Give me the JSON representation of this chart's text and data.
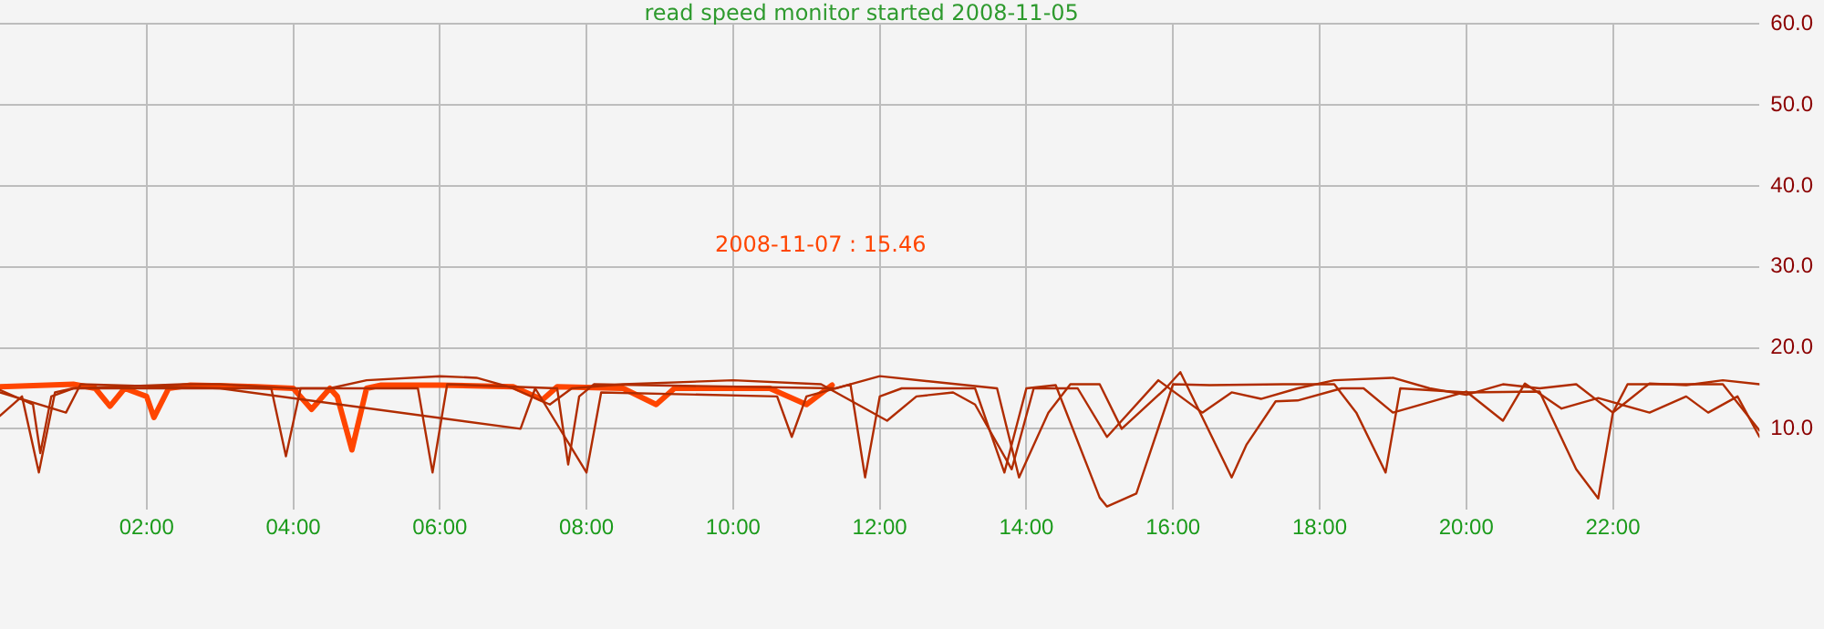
{
  "chart_data": {
    "type": "line",
    "title": "read speed monitor started 2008-11-05",
    "annotations": [
      "2008-11-07 : 15.46"
    ],
    "xlim": [
      0,
      24
    ],
    "xticks": [
      {
        "value": 2,
        "label": "02:00"
      },
      {
        "value": 4,
        "label": "04:00"
      },
      {
        "value": 6,
        "label": "06:00"
      },
      {
        "value": 8,
        "label": "08:00"
      },
      {
        "value": 10,
        "label": "10:00"
      },
      {
        "value": 12,
        "label": "12:00"
      },
      {
        "value": 14,
        "label": "14:00"
      },
      {
        "value": 16,
        "label": "16:00"
      },
      {
        "value": 18,
        "label": "18:00"
      },
      {
        "value": 20,
        "label": "20:00"
      },
      {
        "value": 22,
        "label": "22:00"
      }
    ],
    "ylim": [
      0,
      60
    ],
    "yticks": [
      {
        "value": 10,
        "label": "10.0"
      },
      {
        "value": 20,
        "label": "20.0"
      },
      {
        "value": 30,
        "label": "30.0"
      },
      {
        "value": 40,
        "label": "40.0"
      },
      {
        "value": 50,
        "label": "50.0"
      },
      {
        "value": 60,
        "label": "60.0"
      }
    ],
    "grid": true,
    "legend": false,
    "marker": "none",
    "line_style": "solid",
    "series": [
      {
        "color": "#b02c00",
        "x": [
          0,
          0.3,
          0.53,
          0.75,
          1,
          3.7,
          3.9,
          4.1,
          5.7,
          5.9,
          6.1,
          7.6,
          7.75,
          7.9,
          8.1,
          11.4,
          11.6,
          11.8,
          12,
          12.3,
          13.3,
          13.7,
          14,
          14.4,
          15,
          15.1,
          15.5,
          16,
          16.5,
          17.5,
          18.2,
          18.5,
          18.9,
          19.1,
          20,
          21,
          21.5,
          21.8,
          22,
          22.2,
          23.5,
          24
        ],
        "values": [
          11.6,
          14,
          4.6,
          14.5,
          15,
          15,
          6.6,
          15,
          15,
          4.6,
          15.5,
          15,
          5.6,
          14,
          15.5,
          15,
          15.5,
          4,
          14,
          15,
          15,
          4.6,
          15,
          15.4,
          1.5,
          0.4,
          2,
          15.5,
          15.4,
          15.5,
          15.5,
          12,
          4.6,
          15,
          14.5,
          14.6,
          5,
          1.4,
          12,
          15.5,
          15.5,
          9.8
        ]
      },
      {
        "color": "#b02c00",
        "x": [
          0,
          0.9,
          1.1,
          3,
          7.1,
          7.3,
          8,
          8.2,
          10.6,
          10.8,
          11,
          12,
          13.6,
          13.9,
          14.3,
          14.6,
          15,
          15.3,
          15.9,
          16.1,
          16.8,
          17,
          17.4,
          17.7,
          18.3,
          18.6,
          19,
          20,
          20.5,
          20.8,
          21.3,
          21.8,
          22.5,
          23,
          23.3,
          23.7,
          24
        ],
        "values": [
          14.5,
          12,
          15.5,
          15,
          10,
          15,
          4.6,
          14.5,
          14,
          9,
          14,
          16.5,
          15,
          4,
          12,
          15.5,
          15.5,
          10,
          15,
          17,
          4,
          8,
          13.4,
          13.5,
          15,
          15,
          12,
          14.6,
          11,
          15.6,
          12.5,
          13.8,
          12,
          14,
          12,
          14,
          9
        ]
      },
      {
        "color": "#b02c00",
        "x": [
          0,
          0.45,
          0.55,
          0.7,
          1,
          2.5,
          3,
          4,
          4.5,
          5,
          6,
          6.5,
          6.9,
          7,
          7.5,
          7.8,
          8.5,
          10,
          11.2,
          12.1,
          12.5,
          13,
          13.3,
          13.8,
          14.1,
          14.7,
          15.1,
          15.8,
          16.4,
          16.8,
          17.2,
          17.7,
          18.2,
          19,
          19.5,
          20,
          20.5,
          21,
          21.5,
          22,
          22.5,
          23,
          23.5,
          24
        ],
        "values": [
          14.8,
          13,
          7,
          14,
          15,
          15.5,
          15.5,
          15,
          15,
          16,
          16.5,
          16.3,
          15.3,
          15,
          13,
          15,
          15.5,
          16,
          15.5,
          11,
          14,
          14.5,
          13,
          5,
          15,
          15,
          9,
          16,
          12,
          14.5,
          13.7,
          15,
          16,
          16.3,
          15,
          14.2,
          15.5,
          15,
          15.5,
          12,
          15.6,
          15.4,
          16,
          15.5
        ]
      },
      {
        "color": "#ff4500",
        "x": [
          0,
          1,
          1.3,
          1.5,
          1.7,
          2,
          2.1,
          2.3,
          2.6,
          3.5,
          4,
          4.25,
          4.5,
          4.6,
          4.8,
          5,
          5.2,
          6,
          7,
          7.4,
          7.6,
          8.5,
          8.95,
          9.2,
          10.5,
          11,
          11.35
        ],
        "values": [
          15.2,
          15.5,
          15,
          12.8,
          15,
          14,
          11.4,
          15,
          15.4,
          15.2,
          15,
          12.4,
          15,
          14,
          7.4,
          15,
          15.4,
          15.4,
          15.2,
          13.6,
          15.2,
          15,
          13,
          15,
          15,
          13,
          15.4
        ]
      }
    ]
  }
}
